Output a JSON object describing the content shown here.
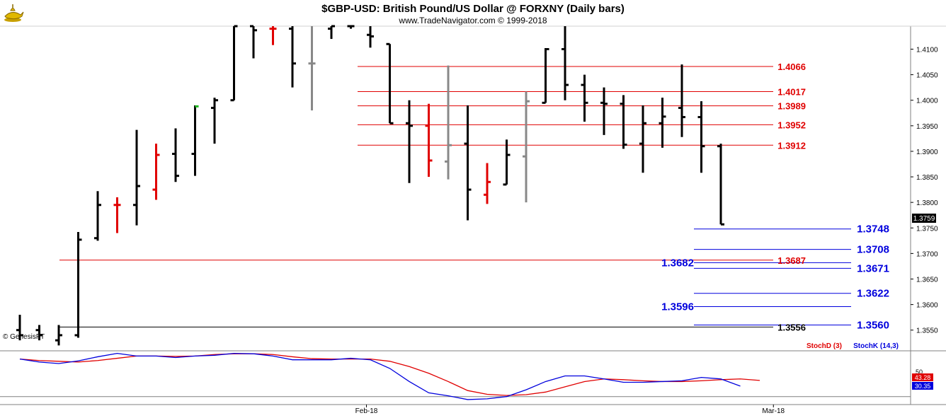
{
  "header": {
    "title": "$GBP-USD:  British Pound/US Dollar @ FORXNY  (Daily bars)",
    "subtitle": "www.TradeNavigator.com © 1999-2018"
  },
  "watermark": "© GenesisFT",
  "logo": "genie-lamp-icon",
  "chart_data": {
    "type": "ohlc",
    "price_axis": {
      "ylim": [
        1.3515,
        1.4145
      ],
      "ticks": [
        "1.4100",
        "1.4050",
        "1.4000",
        "1.3950",
        "1.3900",
        "1.3850",
        "1.3800",
        "1.3750",
        "1.3700",
        "1.3650",
        "1.3600",
        "1.3550"
      ],
      "last_price": "1.3759"
    },
    "x_labels": [
      {
        "label": "Feb-18",
        "bar": 17.8
      },
      {
        "label": "Mar-18",
        "bar": 38.7
      }
    ],
    "bars": [
      {
        "o": 1.355,
        "h": 1.358,
        "l": 1.353,
        "c": 1.354,
        "color": "black"
      },
      {
        "o": 1.355,
        "h": 1.356,
        "l": 1.353,
        "c": 1.354,
        "color": "black"
      },
      {
        "o": 1.353,
        "h": 1.356,
        "l": 1.352,
        "c": 1.354,
        "color": "black"
      },
      {
        "o": 1.354,
        "h": 1.3742,
        "l": 1.3535,
        "c": 1.3727,
        "color": "black"
      },
      {
        "o": 1.373,
        "h": 1.3822,
        "l": 1.3725,
        "c": 1.3795,
        "color": "black"
      },
      {
        "o": 1.3795,
        "h": 1.381,
        "l": 1.374,
        "c": 1.3795,
        "color": "red"
      },
      {
        "o": 1.3795,
        "h": 1.3942,
        "l": 1.3755,
        "c": 1.3832,
        "color": "black"
      },
      {
        "o": 1.3825,
        "h": 1.3915,
        "l": 1.3805,
        "c": 1.3893,
        "color": "red"
      },
      {
        "o": 1.3895,
        "h": 1.3945,
        "l": 1.384,
        "c": 1.3852,
        "color": "black"
      },
      {
        "o": 1.3895,
        "h": 1.399,
        "l": 1.3852,
        "c": 1.3988,
        "color": "black",
        "tick_color": "#22bb22"
      },
      {
        "o": 1.3985,
        "h": 1.4005,
        "l": 1.3915,
        "c": 1.4,
        "color": "black"
      },
      {
        "o": 1.4,
        "h": 1.4145,
        "l": 1.4,
        "c": 1.4145,
        "color": "black"
      },
      {
        "o": 1.4145,
        "h": 1.4145,
        "l": 1.4082,
        "c": 1.4137,
        "color": "black"
      },
      {
        "o": 1.414,
        "h": 1.4145,
        "l": 1.4108,
        "c": 1.414,
        "color": "red"
      },
      {
        "o": 1.414,
        "h": 1.4145,
        "l": 1.4025,
        "c": 1.4072,
        "color": "black"
      },
      {
        "o": 1.4072,
        "h": 1.4145,
        "l": 1.398,
        "c": 1.4072,
        "color": "gray"
      },
      {
        "o": 1.414,
        "h": 1.4145,
        "l": 1.412,
        "c": 1.4145,
        "color": "black"
      },
      {
        "o": 1.4145,
        "h": 1.4145,
        "l": 1.414,
        "c": 1.4145,
        "color": "black"
      },
      {
        "o": 1.4128,
        "h": 1.4145,
        "l": 1.4103,
        "c": 1.4125,
        "color": "black"
      },
      {
        "o": 1.411,
        "h": 1.411,
        "l": 1.3955,
        "c": 1.3955,
        "color": "black"
      },
      {
        "o": 1.3955,
        "h": 1.4,
        "l": 1.3838,
        "c": 1.395,
        "color": "black"
      },
      {
        "o": 1.395,
        "h": 1.3993,
        "l": 1.385,
        "c": 1.3882,
        "color": "red"
      },
      {
        "o": 1.388,
        "h": 1.4068,
        "l": 1.3845,
        "c": 1.3912,
        "color": "gray"
      },
      {
        "o": 1.3915,
        "h": 1.399,
        "l": 1.3765,
        "c": 1.3825,
        "color": "black"
      },
      {
        "o": 1.3815,
        "h": 1.3877,
        "l": 1.3797,
        "c": 1.384,
        "color": "red"
      },
      {
        "o": 1.3835,
        "h": 1.3923,
        "l": 1.3835,
        "c": 1.3893,
        "color": "black"
      },
      {
        "o": 1.389,
        "h": 1.4017,
        "l": 1.38,
        "c": 1.3998,
        "color": "gray"
      },
      {
        "o": 1.3995,
        "h": 1.4102,
        "l": 1.3995,
        "c": 1.41,
        "color": "black"
      },
      {
        "o": 1.41,
        "h": 1.4145,
        "l": 1.4,
        "c": 1.403,
        "color": "black"
      },
      {
        "o": 1.403,
        "h": 1.405,
        "l": 1.3958,
        "c": 1.3995,
        "color": "black"
      },
      {
        "o": 1.3995,
        "h": 1.4025,
        "l": 1.3932,
        "c": 1.3993,
        "color": "black"
      },
      {
        "o": 1.3993,
        "h": 1.401,
        "l": 1.3905,
        "c": 1.3913,
        "color": "black"
      },
      {
        "o": 1.3915,
        "h": 1.399,
        "l": 1.3858,
        "c": 1.3955,
        "color": "black"
      },
      {
        "o": 1.3955,
        "h": 1.4005,
        "l": 1.3907,
        "c": 1.3968,
        "color": "black"
      },
      {
        "o": 1.3985,
        "h": 1.407,
        "l": 1.3928,
        "c": 1.3967,
        "color": "black"
      },
      {
        "o": 1.3967,
        "h": 1.3998,
        "l": 1.3858,
        "c": 1.391,
        "color": "black"
      },
      {
        "o": 1.391,
        "h": 1.3915,
        "l": 1.3757,
        "c": 1.3757,
        "color": "black"
      }
    ],
    "levels": [
      {
        "value": "1.4066",
        "color": "#e00000",
        "from_bar": 18.0
      },
      {
        "value": "1.4017",
        "color": "#e00000",
        "from_bar": 18.0
      },
      {
        "value": "1.3989",
        "color": "#e00000",
        "from_bar": 18.0
      },
      {
        "value": "1.3952",
        "color": "#e00000",
        "from_bar": 18.0
      },
      {
        "value": "1.3912",
        "color": "#e00000",
        "from_bar": 18.0
      },
      {
        "value": "1.3748",
        "color": "#0000dd",
        "from_bar": 35.0
      },
      {
        "value": "1.3708",
        "color": "#0000dd",
        "from_bar": 35.0
      },
      {
        "value": "1.3687",
        "color": "#e00000",
        "from_bar": 2.0
      },
      {
        "value": "1.3682",
        "color": "#0000dd",
        "from_bar": 35.0
      },
      {
        "value": "1.3671",
        "color": "#0000dd",
        "from_bar": 35.0
      },
      {
        "value": "1.3622",
        "color": "#0000dd",
        "from_bar": 35.0
      },
      {
        "value": "1.3596",
        "color": "#0000dd",
        "from_bar": 35.0
      },
      {
        "value": "1.3560",
        "color": "#0000dd",
        "from_bar": 35.0
      },
      {
        "value": "1.3556",
        "color": "#000000",
        "from_bar": 2.0
      }
    ],
    "level_labels": [
      {
        "text": "1.4066",
        "color": "#e00000",
        "side": "red"
      },
      {
        "text": "1.4017",
        "color": "#e00000",
        "side": "red"
      },
      {
        "text": "1.3989",
        "color": "#e00000",
        "side": "red"
      },
      {
        "text": "1.3952",
        "color": "#e00000",
        "side": "red"
      },
      {
        "text": "1.3912",
        "color": "#e00000",
        "side": "red"
      },
      {
        "text": "1.3748",
        "color": "#0000dd",
        "side": "right"
      },
      {
        "text": "1.3708",
        "color": "#0000dd",
        "side": "right"
      },
      {
        "text": "1.3687",
        "color": "#e00000",
        "side": "red"
      },
      {
        "text": "1.3682",
        "color": "#0000dd",
        "side": "left"
      },
      {
        "text": "1.3671",
        "color": "#0000dd",
        "side": "right"
      },
      {
        "text": "1.3622",
        "color": "#0000dd",
        "side": "right"
      },
      {
        "text": "1.3596",
        "color": "#0000dd",
        "side": "left"
      },
      {
        "text": "1.3560",
        "color": "#0000dd",
        "side": "right"
      },
      {
        "text": "1.3556",
        "color": "#000000",
        "side": "red"
      }
    ],
    "stochastic": {
      "legend_d": "StochD (3)",
      "legend_k": "StochK (14,3)",
      "color_d": "#e00000",
      "color_k": "#0000dd",
      "ylim": [
        0,
        100
      ],
      "tick": "50",
      "value_d": "43.28",
      "value_k": "30.35",
      "d_series": [
        {
          "bar": 0,
          "v": 100
        },
        {
          "bar": 1,
          "v": 96
        },
        {
          "bar": 2,
          "v": 94
        },
        {
          "bar": 3,
          "v": 92
        },
        {
          "bar": 4,
          "v": 96
        },
        {
          "bar": 5,
          "v": 102
        },
        {
          "bar": 6,
          "v": 108
        },
        {
          "bar": 7,
          "v": 108
        },
        {
          "bar": 8,
          "v": 107
        },
        {
          "bar": 9,
          "v": 108
        },
        {
          "bar": 10,
          "v": 112
        },
        {
          "bar": 11,
          "v": 114
        },
        {
          "bar": 12,
          "v": 114
        },
        {
          "bar": 13,
          "v": 112
        },
        {
          "bar": 14,
          "v": 106
        },
        {
          "bar": 15,
          "v": 101
        },
        {
          "bar": 16,
          "v": 100
        },
        {
          "bar": 17,
          "v": 100
        },
        {
          "bar": 18,
          "v": 100
        },
        {
          "bar": 19,
          "v": 94
        },
        {
          "bar": 20,
          "v": 80
        },
        {
          "bar": 21,
          "v": 62
        },
        {
          "bar": 22,
          "v": 40
        },
        {
          "bar": 23,
          "v": 16
        },
        {
          "bar": 24,
          "v": 6
        },
        {
          "bar": 25,
          "v": 3
        },
        {
          "bar": 26,
          "v": 5
        },
        {
          "bar": 27,
          "v": 12
        },
        {
          "bar": 28,
          "v": 26
        },
        {
          "bar": 29,
          "v": 40
        },
        {
          "bar": 30,
          "v": 47
        },
        {
          "bar": 31,
          "v": 45
        },
        {
          "bar": 32,
          "v": 42
        },
        {
          "bar": 33,
          "v": 40
        },
        {
          "bar": 34,
          "v": 40
        },
        {
          "bar": 35,
          "v": 42
        },
        {
          "bar": 36,
          "v": 45
        },
        {
          "bar": 37,
          "v": 47
        },
        {
          "bar": 38,
          "v": 43
        }
      ],
      "k_series": [
        {
          "bar": 0,
          "v": 100
        },
        {
          "bar": 1,
          "v": 92
        },
        {
          "bar": 2,
          "v": 88
        },
        {
          "bar": 3,
          "v": 95
        },
        {
          "bar": 4,
          "v": 106
        },
        {
          "bar": 5,
          "v": 115
        },
        {
          "bar": 6,
          "v": 108
        },
        {
          "bar": 7,
          "v": 108
        },
        {
          "bar": 8,
          "v": 104
        },
        {
          "bar": 9,
          "v": 108
        },
        {
          "bar": 10,
          "v": 110
        },
        {
          "bar": 11,
          "v": 115
        },
        {
          "bar": 12,
          "v": 114
        },
        {
          "bar": 13,
          "v": 108
        },
        {
          "bar": 14,
          "v": 98
        },
        {
          "bar": 15,
          "v": 98
        },
        {
          "bar": 16,
          "v": 98
        },
        {
          "bar": 17,
          "v": 102
        },
        {
          "bar": 18,
          "v": 98
        },
        {
          "bar": 19,
          "v": 75
        },
        {
          "bar": 20,
          "v": 40
        },
        {
          "bar": 21,
          "v": 10
        },
        {
          "bar": 22,
          "v": 2
        },
        {
          "bar": 23,
          "v": -8
        },
        {
          "bar": 24,
          "v": -6
        },
        {
          "bar": 25,
          "v": 0
        },
        {
          "bar": 26,
          "v": 18
        },
        {
          "bar": 27,
          "v": 40
        },
        {
          "bar": 28,
          "v": 55
        },
        {
          "bar": 29,
          "v": 55
        },
        {
          "bar": 30,
          "v": 47
        },
        {
          "bar": 31,
          "v": 38
        },
        {
          "bar": 32,
          "v": 38
        },
        {
          "bar": 33,
          "v": 40
        },
        {
          "bar": 34,
          "v": 42
        },
        {
          "bar": 35,
          "v": 51
        },
        {
          "bar": 36,
          "v": 47
        },
        {
          "bar": 37,
          "v": 28
        }
      ]
    }
  }
}
